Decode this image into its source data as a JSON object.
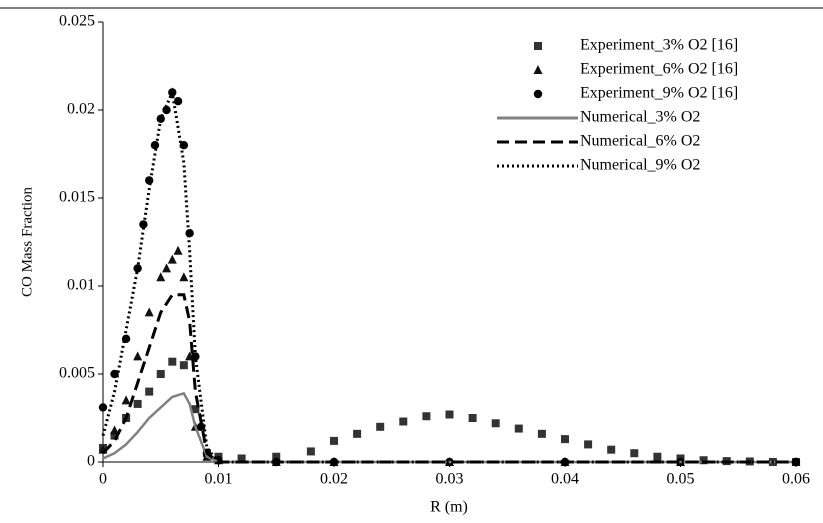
{
  "chart_data": {
    "type": "line",
    "x_label": "R (m)",
    "y_label": "CO Mass Fraction",
    "xlim": [
      0,
      0.06
    ],
    "xticks": [
      0,
      0.01,
      0.02,
      0.03,
      0.04,
      0.05,
      0.06
    ],
    "ylim": [
      0,
      0.025
    ],
    "yticks": [
      0,
      0.005,
      0.01,
      0.015,
      0.02,
      0.025
    ],
    "legend": "top-right",
    "series": [
      {
        "name": "Experiment_3% O2 [16]",
        "color": "#333333",
        "style": "marker",
        "marker": "square",
        "x": [
          0,
          0.001,
          0.002,
          0.003,
          0.004,
          0.005,
          0.006,
          0.007,
          0.008,
          0.009,
          0.01,
          0.012,
          0.015,
          0.018,
          0.02,
          0.022,
          0.024,
          0.026,
          0.028,
          0.03,
          0.032,
          0.034,
          0.036,
          0.038,
          0.04,
          0.042,
          0.044,
          0.046,
          0.048,
          0.05,
          0.052,
          0.054,
          0.056,
          0.058,
          0.06
        ],
        "values": [
          0.0008,
          0.0015,
          0.0025,
          0.0033,
          0.004,
          0.005,
          0.0057,
          0.0055,
          0.003,
          0.0005,
          0.0003,
          0.0002,
          0.0003,
          0.0006,
          0.0012,
          0.0016,
          0.002,
          0.0023,
          0.0026,
          0.0027,
          0.0025,
          0.0022,
          0.0019,
          0.0016,
          0.0013,
          0.001,
          0.0007,
          0.0005,
          0.0003,
          0.0002,
          0.0001,
          5e-05,
          3e-05,
          0,
          0
        ]
      },
      {
        "name": "Experiment_6% O2 [16]",
        "color": "#111111",
        "style": "marker",
        "marker": "triangle",
        "x": [
          0,
          0.001,
          0.002,
          0.003,
          0.004,
          0.005,
          0.0055,
          0.006,
          0.0065,
          0.007,
          0.0075,
          0.008,
          0.009,
          0.01,
          0.015,
          0.02,
          0.03,
          0.04,
          0.05,
          0.06
        ],
        "values": [
          0.0007,
          0.0018,
          0.0035,
          0.006,
          0.0085,
          0.0105,
          0.011,
          0.0115,
          0.012,
          0.0105,
          0.006,
          0.002,
          0.0003,
          0.0001,
          0,
          0,
          0,
          0,
          0,
          0
        ]
      },
      {
        "name": "Experiment_9% O2 [16]",
        "color": "#000000",
        "style": "marker",
        "marker": "circle",
        "x": [
          0,
          0.001,
          0.002,
          0.003,
          0.0035,
          0.004,
          0.0045,
          0.005,
          0.0055,
          0.006,
          0.0065,
          0.007,
          0.0075,
          0.008,
          0.0085,
          0.009,
          0.01,
          0.015,
          0.02,
          0.03,
          0.04,
          0.05,
          0.06
        ],
        "values": [
          0.0031,
          0.005,
          0.007,
          0.011,
          0.0135,
          0.016,
          0.018,
          0.0195,
          0.02,
          0.021,
          0.0205,
          0.018,
          0.013,
          0.006,
          0.002,
          0.0005,
          0.0001,
          0,
          0,
          0,
          0,
          0,
          0
        ]
      },
      {
        "name": "Numerical_3% O2",
        "color": "#808080",
        "style": "line",
        "dash": "solid",
        "x": [
          0,
          0.001,
          0.002,
          0.003,
          0.004,
          0.005,
          0.006,
          0.007,
          0.0075,
          0.008,
          0.009,
          0.01,
          0.06
        ],
        "values": [
          0.0002,
          0.0005,
          0.001,
          0.0017,
          0.0025,
          0.0031,
          0.0037,
          0.0039,
          0.0033,
          0.002,
          0.0003,
          0,
          0
        ]
      },
      {
        "name": "Numerical_6% O2",
        "color": "#000000",
        "style": "line",
        "dash": "dashed",
        "x": [
          0,
          0.001,
          0.002,
          0.003,
          0.004,
          0.005,
          0.006,
          0.007,
          0.0075,
          0.008,
          0.009,
          0.01,
          0.06
        ],
        "values": [
          0.0005,
          0.0012,
          0.0025,
          0.0045,
          0.0065,
          0.0085,
          0.0095,
          0.0095,
          0.008,
          0.004,
          0.0005,
          0,
          0
        ]
      },
      {
        "name": "Numerical_9% O2",
        "color": "#000000",
        "style": "line",
        "dash": "dotted",
        "x": [
          0,
          0.001,
          0.002,
          0.003,
          0.004,
          0.005,
          0.006,
          0.007,
          0.0075,
          0.008,
          0.009,
          0.01,
          0.06
        ],
        "values": [
          0.0015,
          0.004,
          0.0075,
          0.011,
          0.0155,
          0.0195,
          0.021,
          0.017,
          0.012,
          0.006,
          0.0008,
          0,
          0
        ]
      }
    ]
  }
}
